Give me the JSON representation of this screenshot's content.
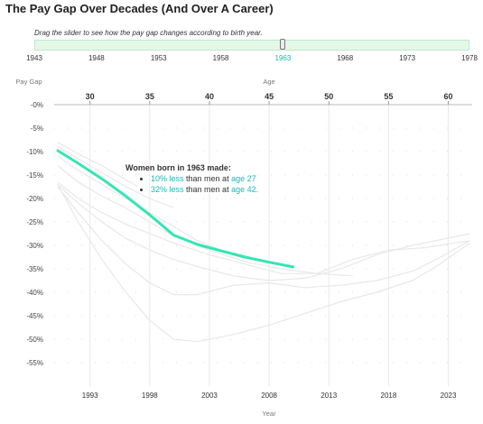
{
  "title": "The Pay Gap Over Decades (And Over A Career)",
  "slider": {
    "hint": "Drag the slider to see how the pay gap changes according to birth year.",
    "min": 1943,
    "max": 1978,
    "value": 1963,
    "tick_labels": [
      "1943",
      "1948",
      "1953",
      "1958",
      "1963",
      "1968",
      "1973",
      "1978"
    ],
    "track_color": "#e4f8e8",
    "active_tick_color": "#1bb8b2"
  },
  "chart_data": {
    "type": "line",
    "ylabel": "Pay Gap",
    "top_axis_label": "Age",
    "xlabel": "Year",
    "x_ticks": [
      "1993",
      "1998",
      "2003",
      "2008",
      "2013",
      "2018",
      "2023"
    ],
    "top_ticks": [
      "30",
      "35",
      "40",
      "45",
      "50",
      "55",
      "60"
    ],
    "y_ticks": [
      "-0%",
      "-5%",
      "-10%",
      "-15%",
      "-20%",
      "-25%",
      "-30%",
      "-35%",
      "-40%",
      "-45%",
      "-50%",
      "-55%"
    ],
    "xlim": [
      1990,
      2025
    ],
    "ylim": [
      -60,
      0
    ],
    "highlight_color": "#33e6b4",
    "background_color": "#e8e8e8",
    "series": [
      {
        "x": [
          1990.3,
          1992,
          1994,
          1996,
          1998,
          2000,
          2002,
          2004,
          2006,
          2008,
          2010
        ],
        "y": [
          -9.8,
          -12.5,
          -15.8,
          -19.5,
          -23.5,
          -27.8,
          -29.8,
          -31.2,
          -32.5,
          -33.6,
          -34.6
        ],
        "highlight": true
      },
      {
        "x": [
          1990.3,
          1992,
          1994,
          1996,
          1997
        ],
        "y": [
          -8,
          -10.5,
          -13,
          -16,
          -17.5
        ]
      },
      {
        "x": [
          1990.3,
          1992,
          1994,
          1996,
          1998,
          2000
        ],
        "y": [
          -9,
          -11.5,
          -14.5,
          -17.5,
          -20,
          -22
        ]
      },
      {
        "x": [
          1990.3,
          1992,
          1994,
          1996,
          1998,
          2000,
          2002,
          2004,
          2006
        ],
        "y": [
          -11,
          -14,
          -17,
          -20,
          -23,
          -26,
          -29,
          -31,
          -33
        ]
      },
      {
        "x": [
          1990.3,
          1992,
          1994,
          1996,
          1998,
          2000,
          2003,
          2006,
          2009,
          2012,
          2015
        ],
        "y": [
          -13,
          -16.5,
          -19.5,
          -22,
          -25,
          -28,
          -31,
          -33.5,
          -35,
          -36,
          -36.5
        ]
      },
      {
        "x": [
          1990.3,
          1992,
          1994,
          1996,
          1998,
          2000,
          2003,
          2006,
          2009,
          2012,
          2015,
          2018,
          2021,
          2024.8
        ],
        "y": [
          -16.5,
          -20,
          -23,
          -25.5,
          -27.5,
          -29.5,
          -32,
          -34,
          -36,
          -36,
          -33,
          -31,
          -30.5,
          -29
        ]
      },
      {
        "x": [
          1990.3,
          1992,
          1994,
          1996,
          1998,
          2000,
          2002,
          2005,
          2008,
          2011,
          2014,
          2017,
          2020,
          2024.8
        ],
        "y": [
          -17,
          -21,
          -25,
          -28.5,
          -31,
          -33,
          -34.5,
          -36.5,
          -37.5,
          -37,
          -35,
          -32,
          -30,
          -27.5
        ]
      },
      {
        "x": [
          1990.3,
          1992,
          1994,
          1996,
          1998,
          2000,
          2002,
          2005,
          2008,
          2011,
          2014,
          2017,
          2020,
          2022,
          2024.8
        ],
        "y": [
          -17.5,
          -23,
          -29,
          -34,
          -38,
          -40.5,
          -40.5,
          -38.5,
          -38,
          -39,
          -38.5,
          -37.5,
          -35.5,
          -33,
          -29
        ]
      },
      {
        "x": [
          1990.3,
          1992,
          1994,
          1996,
          1998,
          2000,
          2002,
          2005,
          2008,
          2011,
          2014,
          2017,
          2020,
          2022,
          2024.8
        ],
        "y": [
          -17,
          -25,
          -33,
          -40,
          -46,
          -50,
          -50.5,
          -49,
          -47,
          -44.5,
          -42,
          -40,
          -37.5,
          -34.5,
          -29.5
        ]
      }
    ]
  },
  "callout": {
    "heading": "Women born in 1963 made:",
    "items": [
      {
        "value": "10% less",
        "middle": " than men at ",
        "age": "age 27"
      },
      {
        "value": "32% less",
        "middle": " than men at ",
        "age": "age 42."
      }
    ]
  }
}
